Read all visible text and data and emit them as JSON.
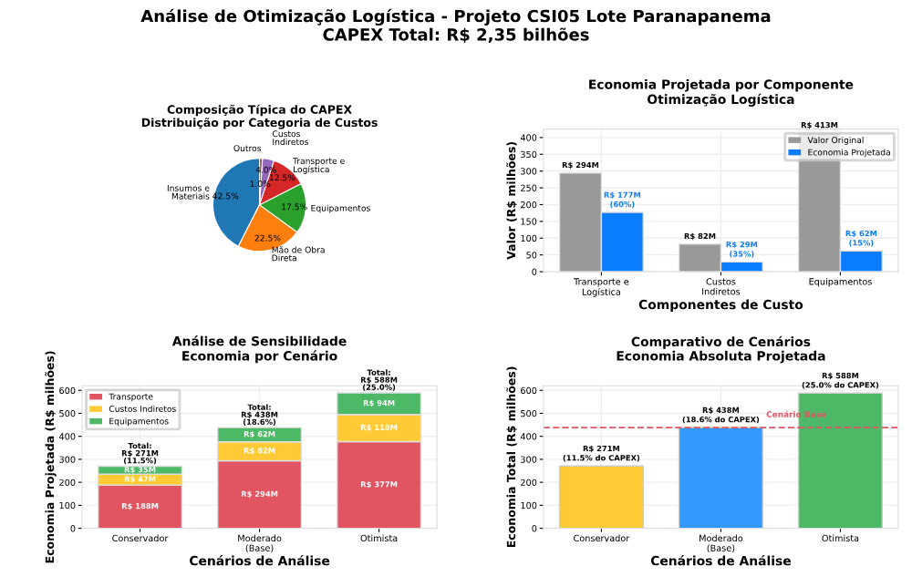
{
  "chart_data": [
    {
      "type": "pie",
      "title": "Análise de Otimização Logística - Projeto CSI05 Lote Paranapanema\nCAPEX Total: R$ 2,35 bilhões",
      "subtitle": "Composição Típica do CAPEX\nDistribuição por Categoria de Custos",
      "categories": [
        "Insumos e\nMateriais",
        "Mão de Obra\nDireta",
        "Equipamentos",
        "Transporte e\nLogística",
        "Custos\nIndiretos",
        "Outros"
      ],
      "values": [
        42.5,
        22.5,
        17.5,
        12.5,
        4.0,
        1.0
      ],
      "colors": [
        "#1f77b4",
        "#ff7f0e",
        "#2ca02c",
        "#d62728",
        "#9467bd",
        "#8c564b"
      ],
      "value_labels": [
        "42.5%",
        "22.5%",
        "17.5%",
        "12.5%",
        "4.0%",
        "1.0%"
      ]
    },
    {
      "type": "bar",
      "title": "Economia Projetada por Componente\nOtimização Logística",
      "xlabel": "Componentes de Custo",
      "ylabel": "Valor (R$ milhões)",
      "categories": [
        "Transporte e\nLogística",
        "Custos\nIndiretos",
        "Equipamentos"
      ],
      "series": [
        {
          "name": "Valor Original",
          "color": "#999999",
          "values": [
            294,
            82,
            413
          ],
          "value_labels": [
            "R$ 294M",
            "R$ 82M",
            "R$ 413M"
          ]
        },
        {
          "name": "Economia Projetada",
          "color": "#0a7cff",
          "values": [
            177,
            29,
            62
          ],
          "value_labels": [
            "R$ 177M",
            "R$ 29M",
            "R$ 62M"
          ]
        }
      ],
      "annotations": [
        {
          "text": "(60%)",
          "x": "Transporte e\nLogística",
          "y": 177
        },
        {
          "text": "(35%)",
          "x": "Custos\nIndiretos",
          "y": 29
        },
        {
          "text": "(15%)",
          "x": "Equipamentos",
          "y": 62
        }
      ],
      "ylim": [
        0,
        425
      ],
      "yticks": [
        0,
        50,
        100,
        150,
        200,
        250,
        300,
        350,
        400
      ],
      "grid": true,
      "legend": "top right"
    },
    {
      "type": "bar",
      "stacked": true,
      "title": "Análise de Sensibilidade\nEconomia por Cenário",
      "xlabel": "Cenários de Análise",
      "ylabel": "Economia Projetada (R$ milhões)",
      "categories": [
        "Conservador",
        "Moderado\n(Base)",
        "Otimista"
      ],
      "series": [
        {
          "name": "Transporte",
          "color": "#e05561",
          "values": [
            188,
            294,
            377
          ],
          "value_labels": [
            "R$ 188M",
            "R$ 294M",
            "R$ 377M"
          ]
        },
        {
          "name": "Custos Indiretos",
          "color": "#ffca33",
          "values": [
            47,
            82,
            118
          ],
          "value_labels": [
            "R$ 47M",
            "R$ 82M",
            "R$ 118M"
          ]
        },
        {
          "name": "Equipamentos",
          "color": "#4db865",
          "values": [
            35,
            62,
            94
          ],
          "value_labels": [
            "R$ 35M",
            "R$ 62M",
            "R$ 94M"
          ]
        }
      ],
      "totals": [
        "Total:\nR$ 271M\n(11.5%)",
        "Total:\nR$ 438M\n(18.6%)",
        "Total:\nR$ 588M\n(25.0%)"
      ],
      "ylim": [
        0,
        620
      ],
      "yticks": [
        0,
        100,
        200,
        300,
        400,
        500,
        600
      ],
      "grid": true,
      "legend": "top left"
    },
    {
      "type": "bar",
      "title": "Comparativo de Cenários\nEconomia Absoluta Projetada",
      "xlabel": "Cenários de Análise",
      "ylabel": "Economia Total (R$ milhões)",
      "categories": [
        "Conservador",
        "Moderado\n(Base)",
        "Otimista"
      ],
      "values": [
        271,
        438,
        588
      ],
      "colors": [
        "#ffca33",
        "#3399ff",
        "#4db865"
      ],
      "value_labels": [
        "R$ 271M",
        "R$ 438M",
        "R$ 588M"
      ],
      "annotations": [
        {
          "text": "(11.5% do CAPEX)",
          "x": "Conservador",
          "y": 271
        },
        {
          "text": "(18.6% do CAPEX)",
          "x": "Moderado\n(Base)",
          "y": 438
        },
        {
          "text": "(25.0% do CAPEX)",
          "x": "Otimista",
          "y": 588
        }
      ],
      "ref_lines": [
        {
          "axis": "y",
          "value": 438,
          "label": "Cenário Base",
          "color": "#e05561",
          "line_style": "dashed"
        }
      ],
      "ylim": [
        0,
        620
      ],
      "yticks": [
        0,
        100,
        200,
        300,
        400,
        500,
        600
      ],
      "grid": true
    }
  ]
}
